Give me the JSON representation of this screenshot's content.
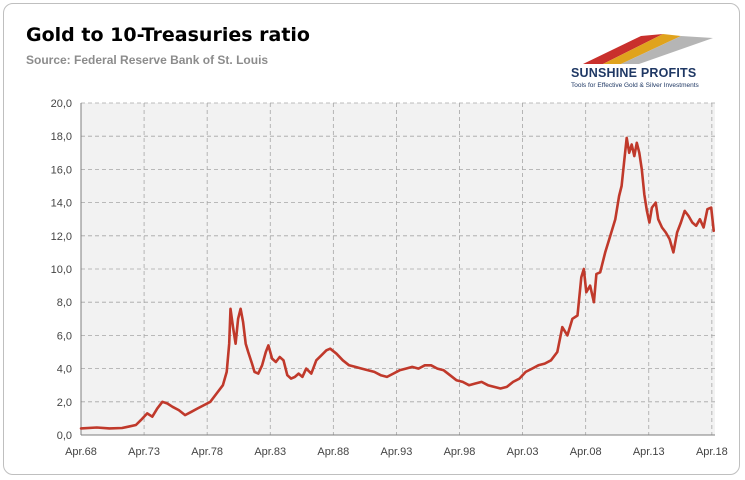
{
  "header": {
    "title": "Gold to 10-Treasuries ratio",
    "source": "Source: Federal Reserve Bank of St. Louis"
  },
  "logo": {
    "name": "SUNSHINE PROFITS",
    "tagline": "Tools for Effective Gold & Silver Investments"
  },
  "colors": {
    "line": "#c0392b",
    "plot_background": "#f2f2f2",
    "grid": "#a6a6a6"
  },
  "chart_data": {
    "type": "line",
    "title": "Gold to 10-Treasuries ratio",
    "xlabel": "",
    "ylabel": "",
    "ylim": [
      0,
      20
    ],
    "xlim": [
      1968.25,
      2018.5
    ],
    "yticks": [
      0,
      2,
      4,
      6,
      8,
      10,
      12,
      14,
      16,
      18,
      20
    ],
    "ytick_labels": [
      "0,0",
      "2,0",
      "4,0",
      "6,0",
      "8,0",
      "10,0",
      "12,0",
      "14,0",
      "16,0",
      "18,0",
      "20,0"
    ],
    "xticks": [
      1968.25,
      1973.25,
      1978.25,
      1983.25,
      1988.25,
      1993.25,
      1998.25,
      2003.25,
      2008.25,
      2013.25,
      2018.25
    ],
    "xtick_labels": [
      "Apr.68",
      "Apr.73",
      "Apr.78",
      "Apr.83",
      "Apr.88",
      "Apr.93",
      "Apr.98",
      "Apr.03",
      "Apr.08",
      "Apr.13",
      "Apr.18"
    ],
    "grid": true,
    "legend": "none",
    "series": [
      {
        "x": [
          1968.25,
          1969.5,
          1970.5,
          1971.5,
          1972.0,
          1972.6,
          1973.0,
          1973.5,
          1973.9,
          1974.3,
          1974.7,
          1975.1,
          1975.5,
          1976.0,
          1976.5,
          1977.0,
          1977.5,
          1978.0,
          1978.5,
          1979.0,
          1979.5,
          1979.8,
          1980.0,
          1980.1,
          1980.3,
          1980.5,
          1980.7,
          1980.9,
          1981.1,
          1981.3,
          1981.5,
          1981.8,
          1982.0,
          1982.3,
          1982.6,
          1982.9,
          1983.1,
          1983.4,
          1983.7,
          1984.0,
          1984.3,
          1984.6,
          1984.9,
          1985.2,
          1985.5,
          1985.8,
          1986.1,
          1986.5,
          1986.9,
          1987.3,
          1987.7,
          1988.0,
          1988.5,
          1989.0,
          1989.5,
          1990.0,
          1990.5,
          1991.0,
          1991.5,
          1992.0,
          1992.5,
          1993.0,
          1993.5,
          1994.0,
          1994.5,
          1995.0,
          1995.5,
          1996.0,
          1996.5,
          1997.0,
          1997.5,
          1998.0,
          1998.5,
          1999.0,
          1999.5,
          2000.0,
          2000.5,
          2001.0,
          2001.5,
          2002.0,
          2002.5,
          2003.0,
          2003.5,
          2004.0,
          2004.5,
          2005.0,
          2005.5,
          2006.0,
          2006.4,
          2006.8,
          2007.2,
          2007.6,
          2007.9,
          2008.1,
          2008.3,
          2008.6,
          2008.9,
          2009.1,
          2009.4,
          2009.8,
          2010.2,
          2010.6,
          2010.9,
          2011.1,
          2011.3,
          2011.5,
          2011.7,
          2011.9,
          2012.1,
          2012.3,
          2012.5,
          2012.7,
          2012.9,
          2013.1,
          2013.3,
          2013.5,
          2013.8,
          2014.0,
          2014.3,
          2014.6,
          2014.9,
          2015.2,
          2015.5,
          2015.8,
          2016.1,
          2016.4,
          2016.7,
          2017.0,
          2017.3,
          2017.6,
          2017.9,
          2018.2,
          2018.4
        ],
        "values": [
          0.4,
          0.45,
          0.4,
          0.42,
          0.5,
          0.6,
          0.9,
          1.3,
          1.1,
          1.6,
          2.0,
          1.9,
          1.7,
          1.5,
          1.2,
          1.4,
          1.6,
          1.8,
          2.0,
          2.5,
          3.0,
          3.8,
          5.5,
          7.6,
          6.5,
          5.5,
          7.0,
          7.6,
          6.8,
          5.5,
          5.0,
          4.3,
          3.8,
          3.7,
          4.2,
          5.0,
          5.4,
          4.6,
          4.4,
          4.7,
          4.5,
          3.6,
          3.4,
          3.5,
          3.7,
          3.5,
          4.0,
          3.7,
          4.5,
          4.8,
          5.1,
          5.2,
          4.9,
          4.5,
          4.2,
          4.1,
          4.0,
          3.9,
          3.8,
          3.6,
          3.5,
          3.7,
          3.9,
          4.0,
          4.1,
          4.0,
          4.2,
          4.2,
          4.0,
          3.9,
          3.6,
          3.3,
          3.2,
          3.0,
          3.1,
          3.2,
          3.0,
          2.9,
          2.8,
          2.9,
          3.2,
          3.4,
          3.8,
          4.0,
          4.2,
          4.3,
          4.5,
          5.0,
          6.5,
          6.0,
          7.0,
          7.2,
          9.5,
          10.0,
          8.6,
          9.0,
          8.0,
          9.7,
          9.8,
          11.0,
          12.0,
          13.0,
          14.4,
          15.0,
          16.5,
          17.9,
          17.0,
          17.5,
          16.8,
          17.6,
          17.0,
          16.0,
          14.5,
          13.5,
          12.8,
          13.7,
          14.0,
          13.0,
          12.5,
          12.2,
          11.8,
          11.0,
          12.2,
          12.8,
          13.5,
          13.2,
          12.8,
          12.6,
          13.0,
          12.5,
          13.6,
          13.7,
          12.3
        ]
      }
    ]
  }
}
